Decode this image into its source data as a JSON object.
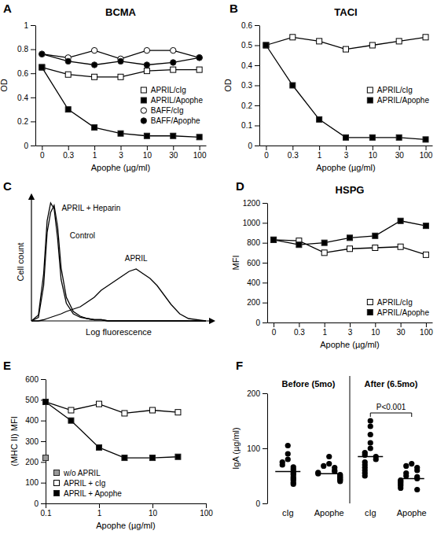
{
  "chart_data": [
    {
      "panel": "A",
      "type": "line",
      "title": "BCMA",
      "x_label": "Apophe (µg/ml)",
      "y_label": "OD",
      "categories": [
        "0",
        "0.3",
        "1",
        "3",
        "10",
        "30",
        "100"
      ],
      "ylim": [
        0,
        1
      ],
      "yticks": [
        0,
        0.2,
        0.4,
        0.6,
        0.8,
        1
      ],
      "legend": "right",
      "series": [
        {
          "name": "APRIL/cIg",
          "color": "#000000",
          "marker": "square-open",
          "values": [
            0.65,
            0.59,
            0.57,
            0.57,
            0.62,
            0.63,
            0.63
          ]
        },
        {
          "name": "APRIL/Apophe",
          "color": "#000000",
          "marker": "square",
          "values": [
            0.65,
            0.3,
            0.15,
            0.1,
            0.08,
            0.08,
            0.07
          ]
        },
        {
          "name": "BAFF/cIg",
          "color": "#000000",
          "marker": "circle-open",
          "values": [
            0.76,
            0.73,
            0.79,
            0.72,
            0.79,
            0.79,
            0.73
          ]
        },
        {
          "name": "BAFF/Apophe",
          "color": "#000000",
          "marker": "circle",
          "values": [
            0.76,
            0.7,
            0.67,
            0.7,
            0.67,
            0.69,
            0.73
          ]
        }
      ]
    },
    {
      "panel": "B",
      "type": "line",
      "title": "TACI",
      "x_label": "Apophe (µg/ml)",
      "y_label": "OD",
      "categories": [
        "0",
        "0.3",
        "1",
        "3",
        "10",
        "30",
        "100"
      ],
      "ylim": [
        0,
        0.6
      ],
      "yticks": [
        0,
        0.1,
        0.2,
        0.3,
        0.4,
        0.5,
        0.6
      ],
      "legend": "right",
      "series": [
        {
          "name": "APRIL/cIg",
          "color": "#000000",
          "marker": "square-open",
          "values": [
            0.5,
            0.54,
            0.52,
            0.48,
            0.5,
            0.52,
            0.54
          ]
        },
        {
          "name": "APRIL/Apophe",
          "color": "#000000",
          "marker": "square",
          "values": [
            0.5,
            0.3,
            0.13,
            0.04,
            0.04,
            0.04,
            0.03
          ]
        }
      ]
    },
    {
      "panel": "C",
      "type": "line",
      "x_label": "Log fluorescence",
      "y_label": "Cell count",
      "tick_labels": false,
      "xlim": [
        0,
        100
      ],
      "ylim": [
        0,
        100
      ],
      "x": [
        0,
        4,
        7,
        9,
        11,
        13,
        15,
        17,
        20,
        24,
        28,
        32,
        36,
        40,
        44,
        48,
        52,
        56,
        60,
        64,
        68,
        72,
        76,
        80,
        85,
        90,
        100
      ],
      "series": [
        {
          "name": "APRIL + Heparin",
          "color": "#000000",
          "values": [
            0,
            5,
            40,
            85,
            100,
            95,
            70,
            35,
            15,
            6,
            3,
            2,
            1,
            1,
            0,
            0,
            0,
            0,
            0,
            0,
            0,
            0,
            0,
            0,
            0,
            0,
            0
          ]
        },
        {
          "name": "Control",
          "color": "#000000",
          "values": [
            0,
            3,
            30,
            75,
            92,
            98,
            80,
            45,
            20,
            8,
            4,
            2,
            1,
            1,
            0,
            0,
            0,
            0,
            0,
            0,
            0,
            0,
            0,
            0,
            0,
            0,
            0
          ]
        },
        {
          "name": "APRIL",
          "color": "#000000",
          "values": [
            0,
            0,
            1,
            2,
            3,
            4,
            5,
            6,
            8,
            10,
            12,
            16,
            20,
            26,
            30,
            34,
            38,
            42,
            44,
            40,
            36,
            30,
            22,
            14,
            6,
            2,
            0
          ]
        }
      ]
    },
    {
      "panel": "D",
      "type": "line",
      "title": "HSPG",
      "x_label": "Apophe (µg/ml)",
      "y_label": "MFI",
      "categories": [
        "0",
        "0.3",
        "1",
        "3",
        "10",
        "30",
        "100"
      ],
      "ylim": [
        0,
        1200
      ],
      "yticks": [
        0,
        200,
        400,
        600,
        800,
        1000,
        1200
      ],
      "legend": "lower right",
      "series": [
        {
          "name": "APRIL/cIg",
          "color": "#000000",
          "marker": "square-open",
          "values": [
            830,
            820,
            700,
            740,
            750,
            760,
            680
          ]
        },
        {
          "name": "APRIL/Apophe",
          "color": "#000000",
          "marker": "square",
          "values": [
            830,
            780,
            800,
            850,
            870,
            1020,
            970
          ]
        }
      ]
    },
    {
      "panel": "E",
      "type": "line",
      "x_label": "Apophe (µg/ml)",
      "y_label": "(MHC II) MFI",
      "log": "x",
      "xlim": [
        0.1,
        100
      ],
      "xticks": [
        0.1,
        1,
        10,
        100
      ],
      "ylim": [
        0,
        600
      ],
      "yticks": [
        0,
        100,
        200,
        300,
        400,
        500,
        600
      ],
      "legend": "lower left",
      "series": [
        {
          "name": "w/o APRIL",
          "color": "#999999",
          "marker": "square",
          "x": [
            0.1
          ],
          "values": [
            220
          ]
        },
        {
          "name": "APRIL + cIg",
          "color": "#000000",
          "marker": "square-open",
          "x": [
            0.1,
            0.3,
            1,
            3,
            10,
            30
          ],
          "values": [
            490,
            450,
            480,
            435,
            450,
            440
          ]
        },
        {
          "name": "APRIL + Apophe",
          "color": "#000000",
          "marker": "square",
          "x": [
            0.1,
            0.3,
            1,
            3,
            10,
            30
          ],
          "values": [
            490,
            400,
            270,
            220,
            220,
            225
          ]
        }
      ]
    },
    {
      "panel": "F",
      "type": "dot",
      "y_label": "IgA (µg/ml)",
      "groups": [
        "Before (5mo)",
        "After (6.5mo)"
      ],
      "categories": [
        "cIg",
        "Apophe",
        "cIg",
        "Apophe"
      ],
      "ylim": [
        0,
        200
      ],
      "yticks": [
        0,
        100,
        200
      ],
      "values": [
        [
          105,
          90,
          80,
          75,
          70,
          66,
          62,
          58,
          55,
          52,
          48,
          45,
          42,
          38,
          35
        ],
        [
          85,
          72,
          68,
          65,
          60,
          58,
          56,
          54,
          52,
          50,
          48,
          46,
          44,
          42,
          40
        ],
        [
          150,
          140,
          125,
          110,
          100,
          92,
          88,
          85,
          80,
          75,
          70,
          65,
          60,
          55,
          50
        ],
        [
          72,
          68,
          65,
          60,
          55,
          50,
          48,
          45,
          42,
          40,
          38,
          35,
          32,
          28,
          25
        ]
      ],
      "medians": [
        58,
        54,
        85,
        45
      ],
      "annotation": "P<0.001",
      "color": "#000000"
    }
  ]
}
